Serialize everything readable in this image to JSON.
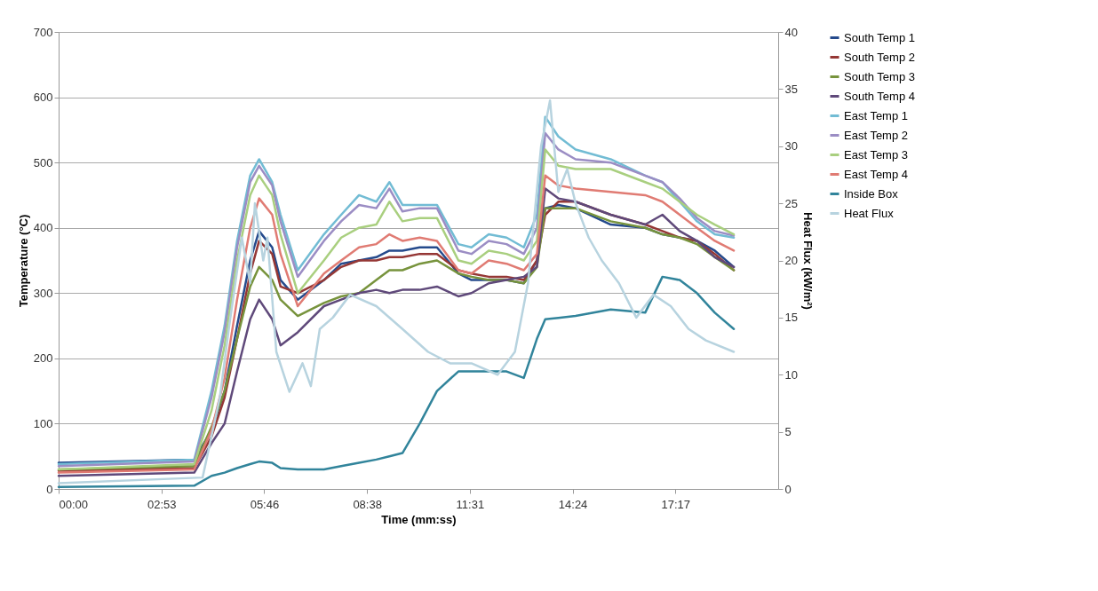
{
  "chart_data": {
    "type": "line",
    "xlabel": "Time (mm:ss)",
    "ylabel": "Temperature (°C)",
    "y2label": "Heat Flux (kW/m²)",
    "x": [
      0,
      228,
      257,
      279,
      300,
      322,
      337,
      359,
      373,
      402,
      446,
      475,
      505,
      534,
      556,
      578,
      607,
      636,
      672,
      694,
      723,
      753,
      782,
      804,
      818,
      840,
      869,
      928,
      986,
      1015,
      1044,
      1073,
      1103,
      1135
    ],
    "series": [
      {
        "name": "South Temp 1",
        "color": "#254a8c",
        "values": [
          40,
          45,
          90,
          150,
          250,
          350,
          395,
          370,
          320,
          290,
          320,
          345,
          350,
          355,
          365,
          365,
          370,
          370,
          330,
          320,
          320,
          320,
          315,
          350,
          430,
          435,
          430,
          405,
          400,
          390,
          385,
          380,
          365,
          340
        ]
      },
      {
        "name": "South Temp 2",
        "color": "#953735",
        "values": [
          28,
          32,
          80,
          140,
          230,
          330,
          380,
          360,
          310,
          300,
          320,
          340,
          350,
          350,
          355,
          355,
          360,
          360,
          335,
          330,
          325,
          325,
          320,
          350,
          420,
          440,
          440,
          420,
          405,
          395,
          385,
          380,
          360,
          335
        ]
      },
      {
        "name": "South Temp 3",
        "color": "#77933c",
        "values": [
          30,
          35,
          95,
          150,
          230,
          310,
          340,
          320,
          290,
          265,
          285,
          295,
          300,
          320,
          335,
          335,
          345,
          350,
          330,
          325,
          320,
          320,
          315,
          340,
          430,
          430,
          430,
          410,
          400,
          390,
          385,
          375,
          355,
          335
        ]
      },
      {
        "name": "South Temp 4",
        "color": "#5f497a",
        "values": [
          20,
          25,
          70,
          100,
          180,
          260,
          290,
          260,
          220,
          240,
          280,
          290,
          300,
          305,
          300,
          305,
          305,
          310,
          295,
          300,
          315,
          320,
          325,
          340,
          460,
          445,
          440,
          420,
          405,
          420,
          395,
          380,
          355,
          340
        ]
      },
      {
        "name": "East Temp 1",
        "color": "#72bcd4",
        "values": [
          38,
          45,
          150,
          250,
          380,
          480,
          505,
          470,
          420,
          335,
          390,
          420,
          450,
          440,
          470,
          435,
          435,
          435,
          375,
          370,
          390,
          385,
          370,
          420,
          570,
          540,
          520,
          505,
          480,
          470,
          440,
          410,
          390,
          385
        ]
      },
      {
        "name": "East Temp 2",
        "color": "#9b8dc4",
        "values": [
          35,
          42,
          140,
          240,
          370,
          470,
          495,
          465,
          410,
          325,
          380,
          410,
          435,
          430,
          460,
          425,
          430,
          430,
          365,
          360,
          380,
          375,
          360,
          400,
          545,
          520,
          505,
          500,
          480,
          470,
          445,
          415,
          395,
          388
        ]
      },
      {
        "name": "East Temp 3",
        "color": "#a9cf7f",
        "values": [
          30,
          38,
          120,
          220,
          350,
          450,
          480,
          450,
          390,
          300,
          350,
          385,
          400,
          405,
          440,
          410,
          415,
          415,
          350,
          345,
          365,
          360,
          350,
          380,
          520,
          495,
          490,
          490,
          470,
          460,
          440,
          420,
          405,
          390
        ]
      },
      {
        "name": "East Temp 4",
        "color": "#e07b73",
        "values": [
          25,
          30,
          90,
          170,
          290,
          400,
          445,
          420,
          360,
          280,
          330,
          350,
          370,
          375,
          390,
          380,
          385,
          380,
          335,
          330,
          350,
          345,
          335,
          360,
          480,
          465,
          460,
          455,
          450,
          440,
          420,
          400,
          380,
          365
        ]
      },
      {
        "name": "Inside Box",
        "color": "#31849b",
        "values": [
          3,
          5,
          20,
          25,
          32,
          38,
          42,
          40,
          32,
          30,
          30,
          35,
          40,
          45,
          50,
          55,
          100,
          150,
          180,
          180,
          180,
          180,
          170,
          230,
          260,
          262,
          265,
          275,
          270,
          325,
          320,
          300,
          270,
          245
        ]
      },
      {
        "name": "Heat Flux",
        "color": "#b7d3df",
        "axis": "y2",
        "x": [
          0,
          242,
          271,
          286,
          308,
          322,
          330,
          344,
          351,
          366,
          388,
          410,
          424,
          439,
          461,
          490,
          534,
          578,
          621,
          658,
          694,
          738,
          767,
          789,
          811,
          826,
          840,
          855,
          869,
          891,
          913,
          942,
          971,
          1000,
          1029,
          1059,
          1088,
          1135
        ],
        "values": [
          0.5,
          1,
          8,
          14,
          22,
          18,
          25,
          20,
          22,
          12,
          8.5,
          11,
          9,
          14,
          15,
          17,
          16,
          14,
          12,
          11,
          11,
          10,
          12,
          18,
          30,
          34,
          26,
          28,
          25,
          22,
          20,
          18,
          15,
          17,
          16,
          14,
          13,
          12
        ]
      }
    ],
    "xlim": [
      0,
      1209.6
    ],
    "xticks": [
      {
        "value": 0,
        "label": "00:00"
      },
      {
        "value": 172.8,
        "label": "02:53"
      },
      {
        "value": 345.6,
        "label": "05:46"
      },
      {
        "value": 518.4,
        "label": "08:38"
      },
      {
        "value": 691.2,
        "label": "11:31"
      },
      {
        "value": 864,
        "label": "14:24"
      },
      {
        "value": 1036.8,
        "label": "17:17"
      }
    ],
    "ylim": [
      0,
      700
    ],
    "yticks": [
      0,
      100,
      200,
      300,
      400,
      500,
      600,
      700
    ],
    "y2lim": [
      0,
      40
    ],
    "y2ticks": [
      0,
      5,
      10,
      15,
      20,
      25,
      30,
      35,
      40
    ],
    "grid": "y",
    "legend": "right"
  }
}
